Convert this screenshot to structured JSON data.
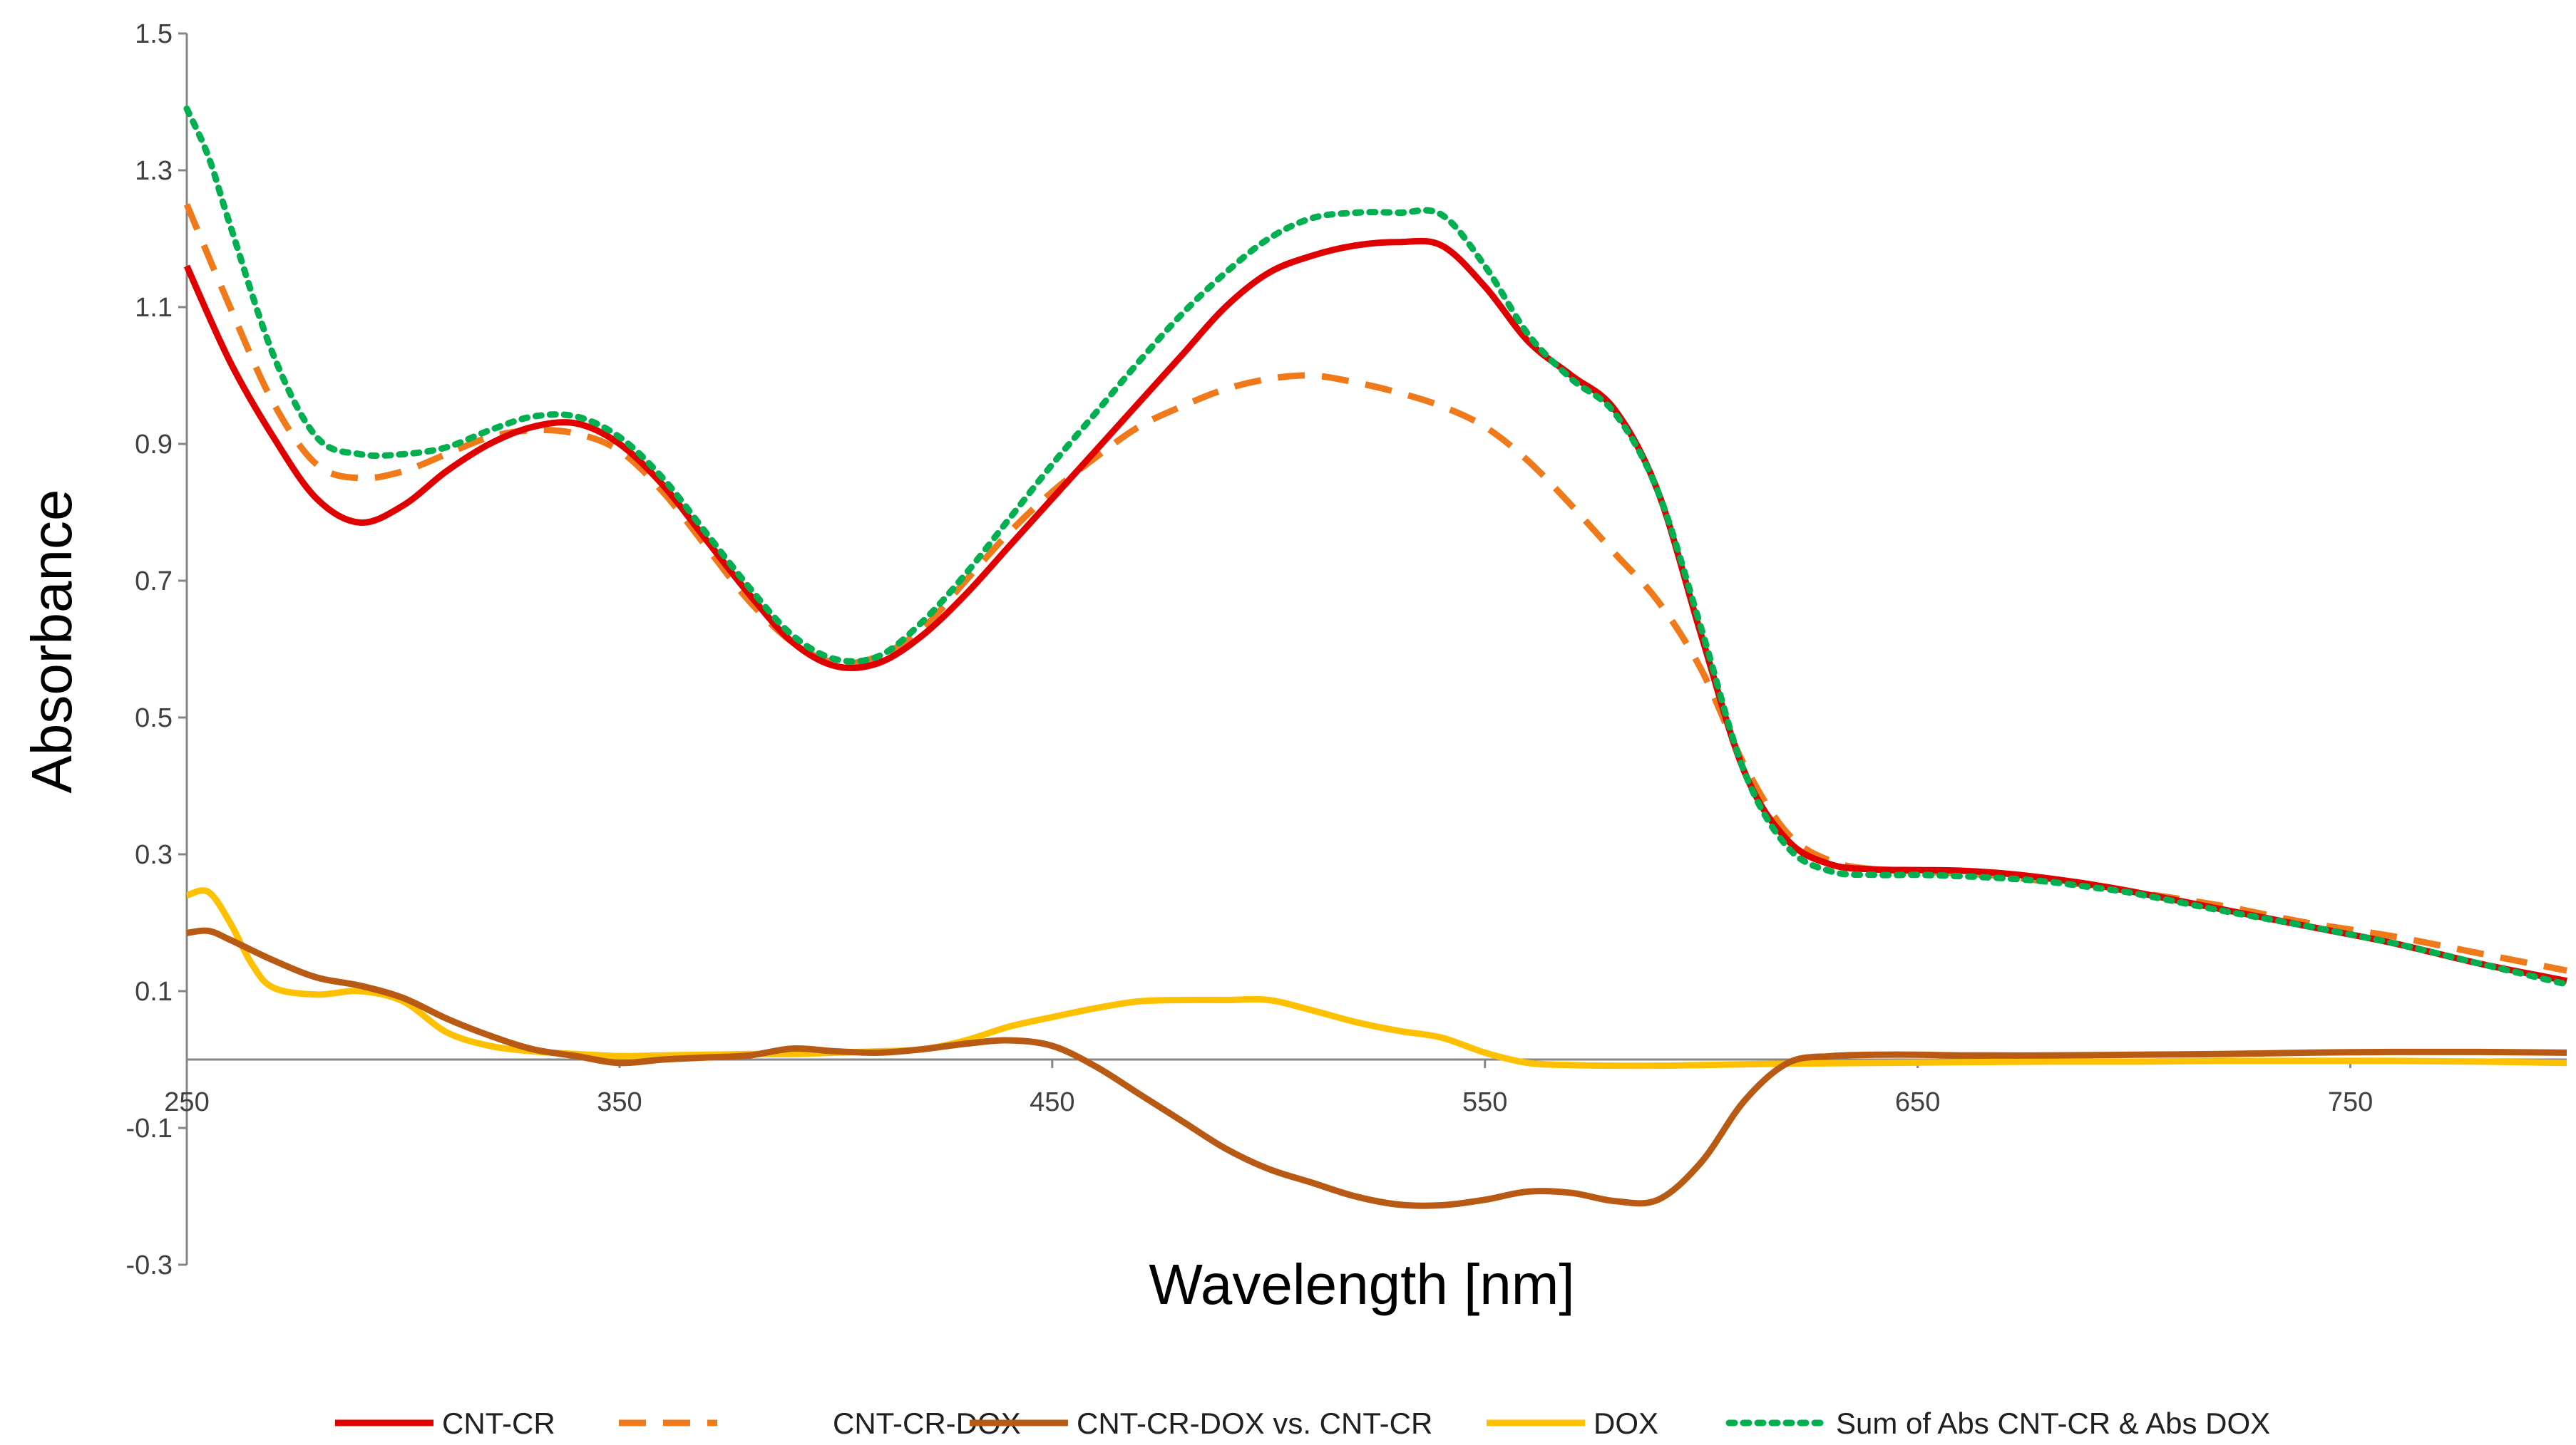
{
  "chart_data": {
    "type": "line",
    "title": "",
    "xlabel": "Wavelength [nm]",
    "ylabel": "Absorbance",
    "xlim": [
      250,
      800
    ],
    "ylim": [
      -0.3,
      1.5
    ],
    "x_ticks": [
      250,
      350,
      450,
      550,
      650,
      750
    ],
    "x_tick_labels": [
      "250",
      "350",
      "450",
      "550",
      "650",
      "750"
    ],
    "y_ticks": [
      -0.3,
      -0.1,
      0.1,
      0.3,
      0.5,
      0.7,
      0.9,
      1.1,
      1.3,
      1.5
    ],
    "y_tick_labels": [
      "-0.3",
      "-0.1",
      "0.1",
      "0.3",
      "0.5",
      "0.7",
      "0.9",
      "1.1",
      "1.3",
      "1.5"
    ],
    "grid": false,
    "legend_position": "bottom",
    "series": [
      {
        "name": "CNT-CR",
        "color": "#e00000",
        "dash": "solid",
        "x": [
          250,
          260,
          270,
          280,
          290,
          300,
          310,
          320,
          330,
          340,
          350,
          360,
          370,
          380,
          390,
          400,
          410,
          420,
          430,
          440,
          450,
          460,
          470,
          480,
          490,
          500,
          510,
          520,
          530,
          540,
          550,
          560,
          570,
          580,
          590,
          600,
          610,
          620,
          630,
          640,
          650,
          660,
          670,
          680,
          690,
          700,
          720,
          740,
          760,
          780,
          800
        ],
        "y": [
          1.16,
          1.02,
          0.91,
          0.82,
          0.785,
          0.81,
          0.86,
          0.9,
          0.925,
          0.93,
          0.9,
          0.84,
          0.76,
          0.68,
          0.61,
          0.575,
          0.58,
          0.62,
          0.68,
          0.75,
          0.82,
          0.89,
          0.96,
          1.03,
          1.1,
          1.15,
          1.175,
          1.19,
          1.195,
          1.19,
          1.13,
          1.05,
          1.0,
          0.95,
          0.83,
          0.62,
          0.42,
          0.32,
          0.285,
          0.278,
          0.277,
          0.276,
          0.272,
          0.265,
          0.256,
          0.245,
          0.22,
          0.195,
          0.17,
          0.14,
          0.115
        ]
      },
      {
        "name": "CNT-CR-DOX",
        "color": "#f07a1a",
        "dash": "dashed",
        "x": [
          250,
          260,
          270,
          280,
          290,
          300,
          310,
          320,
          330,
          340,
          350,
          360,
          370,
          380,
          390,
          400,
          410,
          420,
          430,
          440,
          450,
          460,
          470,
          480,
          490,
          500,
          510,
          520,
          530,
          540,
          550,
          560,
          570,
          580,
          590,
          600,
          610,
          620,
          630,
          640,
          650,
          660,
          670,
          680,
          690,
          700,
          720,
          740,
          760,
          780,
          800
        ],
        "y": [
          1.25,
          1.1,
          0.96,
          0.87,
          0.85,
          0.86,
          0.885,
          0.91,
          0.92,
          0.915,
          0.89,
          0.83,
          0.75,
          0.67,
          0.61,
          0.58,
          0.59,
          0.63,
          0.7,
          0.77,
          0.83,
          0.88,
          0.925,
          0.955,
          0.98,
          0.995,
          1.0,
          0.99,
          0.975,
          0.955,
          0.925,
          0.875,
          0.81,
          0.74,
          0.67,
          0.57,
          0.43,
          0.33,
          0.29,
          0.278,
          0.275,
          0.272,
          0.268,
          0.26,
          0.255,
          0.245,
          0.225,
          0.2,
          0.18,
          0.155,
          0.13
        ]
      },
      {
        "name": "CNT-CR-DOX vs. CNT-CR",
        "color": "#b85a14",
        "dash": "solid",
        "x": [
          250,
          255,
          260,
          270,
          280,
          290,
          300,
          310,
          320,
          330,
          340,
          350,
          360,
          370,
          380,
          390,
          400,
          410,
          420,
          430,
          440,
          450,
          460,
          470,
          480,
          490,
          500,
          510,
          520,
          530,
          540,
          550,
          560,
          570,
          580,
          590,
          600,
          610,
          620,
          630,
          640,
          650,
          660,
          680,
          700,
          720,
          740,
          760,
          780,
          800
        ],
        "y": [
          0.185,
          0.188,
          0.175,
          0.145,
          0.12,
          0.108,
          0.09,
          0.06,
          0.035,
          0.015,
          0.005,
          -0.005,
          0.0,
          0.003,
          0.006,
          0.016,
          0.012,
          0.01,
          0.015,
          0.023,
          0.028,
          0.02,
          -0.01,
          -0.05,
          -0.09,
          -0.13,
          -0.16,
          -0.18,
          -0.2,
          -0.212,
          -0.213,
          -0.205,
          -0.193,
          -0.195,
          -0.207,
          -0.205,
          -0.15,
          -0.06,
          -0.005,
          0.005,
          0.007,
          0.007,
          0.006,
          0.006,
          0.007,
          0.008,
          0.01,
          0.011,
          0.011,
          0.01
        ]
      },
      {
        "name": "DOX",
        "color": "#ffc000",
        "dash": "solid",
        "x": [
          250,
          255,
          260,
          265,
          270,
          280,
          290,
          300,
          310,
          320,
          330,
          340,
          350,
          360,
          370,
          380,
          390,
          400,
          410,
          420,
          430,
          440,
          450,
          460,
          470,
          480,
          490,
          500,
          510,
          520,
          530,
          540,
          550,
          560,
          570,
          580,
          590,
          600,
          620,
          640,
          660,
          680,
          700,
          720,
          740,
          760,
          780,
          800
        ],
        "y": [
          0.24,
          0.245,
          0.2,
          0.14,
          0.105,
          0.095,
          0.1,
          0.085,
          0.04,
          0.02,
          0.012,
          0.008,
          0.005,
          0.006,
          0.007,
          0.008,
          0.008,
          0.01,
          0.012,
          0.015,
          0.028,
          0.048,
          0.062,
          0.075,
          0.085,
          0.087,
          0.087,
          0.087,
          0.072,
          0.055,
          0.042,
          0.032,
          0.01,
          -0.005,
          -0.008,
          -0.009,
          -0.009,
          -0.008,
          -0.006,
          -0.005,
          -0.004,
          -0.003,
          -0.003,
          -0.002,
          -0.002,
          -0.002,
          -0.003,
          -0.005
        ]
      },
      {
        "name": "Sum of Abs CNT-CR & Abs DOX",
        "color": "#00b050",
        "dash": "dotted",
        "x": [
          250,
          255,
          260,
          270,
          280,
          290,
          300,
          310,
          320,
          330,
          340,
          350,
          360,
          370,
          380,
          390,
          400,
          410,
          420,
          430,
          440,
          450,
          460,
          470,
          480,
          490,
          500,
          510,
          520,
          530,
          540,
          550,
          560,
          570,
          580,
          590,
          600,
          610,
          620,
          630,
          640,
          650,
          660,
          670,
          680,
          690,
          700,
          720,
          740,
          760,
          780,
          800
        ],
        "y": [
          1.39,
          1.32,
          1.22,
          1.03,
          0.91,
          0.885,
          0.885,
          0.895,
          0.92,
          0.94,
          0.94,
          0.91,
          0.85,
          0.77,
          0.69,
          0.62,
          0.585,
          0.59,
          0.64,
          0.71,
          0.79,
          0.87,
          0.945,
          1.02,
          1.09,
          1.15,
          1.2,
          1.23,
          1.238,
          1.238,
          1.235,
          1.16,
          1.06,
          0.995,
          0.945,
          0.83,
          0.63,
          0.42,
          0.31,
          0.275,
          0.27,
          0.27,
          0.268,
          0.265,
          0.26,
          0.252,
          0.243,
          0.218,
          0.195,
          0.17,
          0.14,
          0.11
        ]
      }
    ]
  }
}
